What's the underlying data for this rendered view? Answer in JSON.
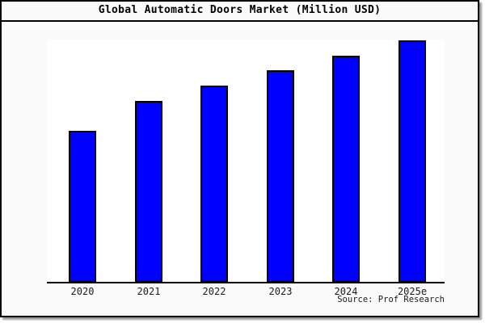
{
  "frame": {
    "title": "Global Automatic Doors Market (Million USD)"
  },
  "source_note": "Source: Prof Research",
  "colors": {
    "bar_fill": "#0000FF",
    "bar_border": "#000000",
    "frame_background": "#FAFAFA",
    "plot_background": "#FFFFFF",
    "frame_border": "#000000"
  },
  "chart_data": {
    "type": "bar",
    "title": "Global Automatic Doors Market (Million USD)",
    "categories": [
      "2020",
      "2021",
      "2022",
      "2023",
      "2024",
      "2025e"
    ],
    "values_relative_pct": [
      62.7,
      75.0,
      81.3,
      87.7,
      93.7,
      100.0
    ],
    "value_axis_note": "no y-axis scale, gridlines or data labels are shown; values are bar heights relative to the tallest bar (2025e = 100)",
    "xlabel": "",
    "ylabel": "",
    "legend": "none",
    "grid": false,
    "bar_color": "#0000FF",
    "source": "Source: Prof Research"
  }
}
